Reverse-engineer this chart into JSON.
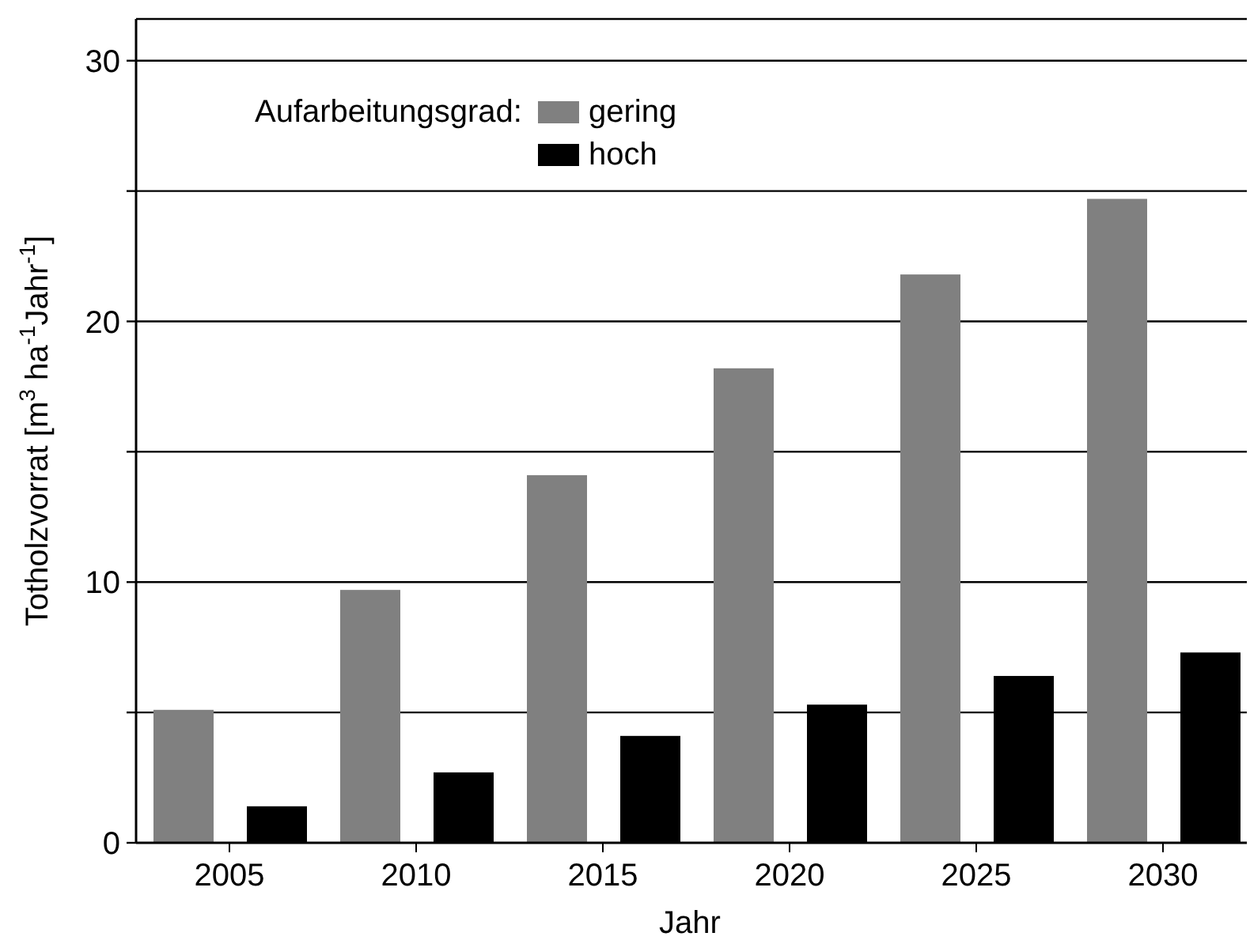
{
  "chart_data": {
    "type": "bar",
    "xlabel": "Jahr",
    "ylabel": "Totholzvorrat [m$^{3}$ ha$^{-1}$Jahr$^{-1}$]",
    "legend_title": "Aufarbeitungsgrad:",
    "categories": [
      "2005",
      "2010",
      "2015",
      "2020",
      "2025",
      "2030"
    ],
    "series": [
      {
        "name": "gering",
        "color": "#808080",
        "values": [
          5.1,
          9.7,
          14.1,
          18.2,
          21.8,
          24.7
        ]
      },
      {
        "name": "hoch",
        "color": "#000000",
        "values": [
          1.4,
          2.7,
          4.1,
          5.3,
          6.4,
          7.3
        ]
      }
    ],
    "ylim": [
      0,
      31.6
    ],
    "yticks": [
      0,
      {
        "value": 5,
        "label": null
      },
      10,
      {
        "value": 15,
        "label": null
      },
      20,
      {
        "value": 25,
        "label": null
      },
      30
    ],
    "grid": "y",
    "legend": "top left"
  }
}
